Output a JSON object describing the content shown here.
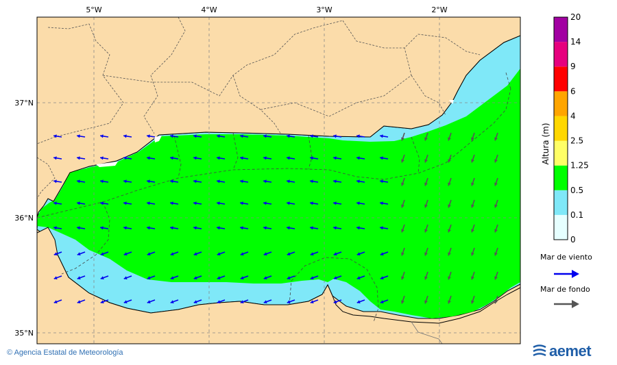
{
  "map": {
    "lon_labels": [
      "5°W",
      "4°W",
      "3°W",
      "2°W"
    ],
    "lat_labels": [
      "37°N",
      "36°N",
      "35°N"
    ]
  },
  "colorbar": {
    "title": "Altura (m)",
    "levels": [
      "0",
      "0.1",
      "0.5",
      "1.25",
      "2.5",
      "4",
      "6",
      "9",
      "14",
      "20"
    ],
    "colors": [
      "#e6ffff",
      "#7fe8f8",
      "#00ff00",
      "#ffff66",
      "#ffd700",
      "#ffa500",
      "#ff0000",
      "#e6007e",
      "#a200a2"
    ]
  },
  "legend": {
    "wind_sea_label": "Mar de viento",
    "wind_sea_color": "#0000ee",
    "swell_label": "Mar de fondo",
    "swell_color": "#555555"
  },
  "footer": {
    "credit": "Agencia Estatal de Meteorología",
    "logo": "aemet"
  },
  "colors": {
    "land": "#fbdcaa",
    "sea_low": "#7fe8f8",
    "sea_mid": "#00ff00"
  }
}
